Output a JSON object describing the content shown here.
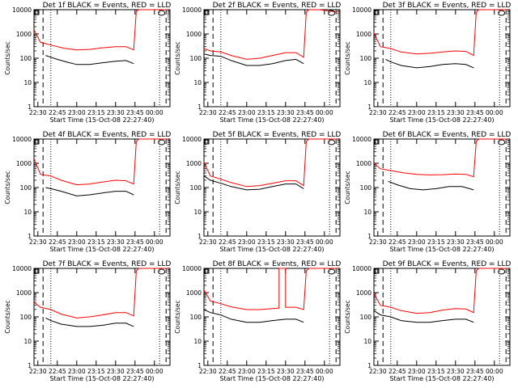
{
  "figure": {
    "type": "multi-panel line chart grid",
    "grid": {
      "rows": 3,
      "cols": 3
    },
    "start_time_label": "Start Time (15-Oct-08 22:27:40)",
    "ylabel": "Counts/sec",
    "colors": {
      "events": "#000000",
      "lld": "#ff0000",
      "axes": "#000000"
    }
  },
  "chart_data": [
    {
      "type": "line",
      "title": "Det 1f BLACK = Events, RED = LLD",
      "xlabel": "Start Time (15-Oct-08 22:27:40)",
      "ylabel": "Counts/sec",
      "xticks": [
        "22:30",
        "22:45",
        "23:00",
        "23:15",
        "23:30",
        "23:45",
        "00:00"
      ],
      "yticks": [
        "1",
        "10",
        "100",
        "1000",
        "10000"
      ],
      "yscale": "log",
      "ylim": [
        1,
        10000
      ],
      "series": [
        {
          "name": "Events",
          "color": "#000000",
          "x": [
            "22:36",
            "22:40",
            "22:45",
            "22:52",
            "23:00",
            "23:10",
            "23:20",
            "23:30",
            "23:38",
            "23:44"
          ],
          "y": [
            130,
            110,
            90,
            70,
            55,
            55,
            65,
            75,
            80,
            60
          ]
        },
        {
          "name": "LLD",
          "color": "#ff0000",
          "x": [
            "22:27",
            "22:32",
            "22:40",
            "22:50",
            "23:00",
            "23:10",
            "23:20",
            "23:30",
            "23:38",
            "23:44",
            "23:46",
            "23:48",
            "23:56",
            "00:10"
          ],
          "y": [
            1500,
            450,
            350,
            260,
            220,
            230,
            270,
            300,
            300,
            220,
            9000,
            10000,
            10000,
            10000
          ]
        }
      ]
    },
    {
      "type": "line",
      "title": "Det 2f BLACK = Events, RED = LLD",
      "xlabel": "Start Time (15-Oct-08 22:27:40)",
      "ylabel": "Counts/sec",
      "xticks": [
        "22:30",
        "22:45",
        "23:00",
        "23:15",
        "23:30",
        "23:45",
        "00:00"
      ],
      "yticks": [
        "1",
        "10",
        "100",
        "1000",
        "10000"
      ],
      "yscale": "log",
      "ylim": [
        1,
        10000
      ],
      "series": [
        {
          "name": "Events",
          "color": "#000000",
          "x": [
            "22:27",
            "22:32",
            "22:40",
            "22:48",
            "23:00",
            "23:10",
            "23:20",
            "23:30",
            "23:38",
            "23:44"
          ],
          "y": [
            150,
            130,
            120,
            80,
            50,
            50,
            60,
            80,
            90,
            60
          ]
        },
        {
          "name": "LLD",
          "color": "#ff0000",
          "x": [
            "22:27",
            "22:32",
            "22:40",
            "22:48",
            "23:00",
            "23:10",
            "23:20",
            "23:30",
            "23:38",
            "23:44",
            "23:46",
            "23:48",
            "23:56",
            "00:10"
          ],
          "y": [
            250,
            200,
            180,
            130,
            90,
            100,
            130,
            170,
            170,
            110,
            8000,
            10000,
            10000,
            8000
          ]
        }
      ]
    },
    {
      "type": "line",
      "title": "Det 3f BLACK = Events, RED = LLD",
      "xlabel": "Start Time (15-Oct-08 22:27:40)",
      "ylabel": "Counts/sec",
      "xticks": [
        "22:30",
        "22:45",
        "23:00",
        "23:15",
        "23:30",
        "23:45",
        "00:00"
      ],
      "yticks": [
        "1",
        "10",
        "100",
        "1000",
        "10000"
      ],
      "yscale": "log",
      "ylim": [
        1,
        10000
      ],
      "series": [
        {
          "name": "Events",
          "color": "#000000",
          "x": [
            "22:36",
            "22:40",
            "22:48",
            "23:00",
            "23:10",
            "23:20",
            "23:30",
            "23:38",
            "23:44"
          ],
          "y": [
            90,
            70,
            50,
            40,
            45,
            55,
            60,
            55,
            40
          ]
        },
        {
          "name": "LLD",
          "color": "#ff0000",
          "x": [
            "22:27",
            "22:32",
            "22:40",
            "22:48",
            "23:00",
            "23:10",
            "23:20",
            "23:30",
            "23:38",
            "23:44",
            "23:46",
            "23:48",
            "00:10"
          ],
          "y": [
            1100,
            300,
            250,
            180,
            150,
            160,
            180,
            200,
            190,
            130,
            8000,
            10000,
            10000
          ]
        }
      ]
    },
    {
      "type": "line",
      "title": "Det 4f BLACK = Events, RED = LLD",
      "xlabel": "Start Time (15-Oct-08 22:27:40)",
      "ylabel": "Counts/sec",
      "xticks": [
        "22:30",
        "22:45",
        "23:00",
        "23:15",
        "23:30",
        "23:45",
        "00:00"
      ],
      "yticks": [
        "1",
        "10",
        "100",
        "1000",
        "10000"
      ],
      "yscale": "log",
      "ylim": [
        1,
        10000
      ],
      "series": [
        {
          "name": "Events",
          "color": "#000000",
          "x": [
            "22:36",
            "22:40",
            "22:48",
            "23:00",
            "23:10",
            "23:20",
            "23:30",
            "23:38",
            "23:44"
          ],
          "y": [
            100,
            90,
            70,
            45,
            50,
            60,
            70,
            70,
            50
          ]
        },
        {
          "name": "LLD",
          "color": "#ff0000",
          "x": [
            "22:27",
            "22:32",
            "22:40",
            "22:48",
            "23:00",
            "23:10",
            "23:20",
            "23:30",
            "23:38",
            "23:44",
            "23:46",
            "23:48",
            "23:56",
            "00:10"
          ],
          "y": [
            1600,
            350,
            300,
            200,
            130,
            140,
            170,
            200,
            190,
            140,
            8000,
            10000,
            10000,
            10000
          ]
        }
      ]
    },
    {
      "type": "line",
      "title": "Det 5f BLACK = Events, RED = LLD",
      "xlabel": "Start Time (15-Oct-08 22:27:40)",
      "ylabel": "Counts/sec",
      "xticks": [
        "22:30",
        "22:45",
        "23:00",
        "23:15",
        "23:30",
        "23:45",
        "00:00"
      ],
      "yticks": [
        "1",
        "10",
        "100",
        "1000",
        "10000"
      ],
      "yscale": "log",
      "ylim": [
        1,
        10000
      ],
      "series": [
        {
          "name": "Events",
          "color": "#000000",
          "x": [
            "22:27",
            "22:32",
            "22:40",
            "22:48",
            "23:00",
            "23:10",
            "23:20",
            "23:30",
            "23:38",
            "23:44"
          ],
          "y": [
            300,
            200,
            150,
            110,
            80,
            85,
            110,
            140,
            140,
            90
          ]
        },
        {
          "name": "LLD",
          "color": "#ff0000",
          "x": [
            "22:27",
            "22:32",
            "22:40",
            "22:48",
            "23:00",
            "23:10",
            "23:20",
            "23:30",
            "23:38",
            "23:44",
            "23:46",
            "23:48",
            "00:10"
          ],
          "y": [
            1100,
            300,
            220,
            160,
            110,
            120,
            150,
            190,
            190,
            120,
            8000,
            10000,
            10000
          ]
        }
      ]
    },
    {
      "type": "line",
      "title": "Det 6f BLACK = Events, RED = LLD",
      "xlabel": "Start Time (15-Oct-08 22:27:40)",
      "ylabel": "Counts/sec",
      "xticks": [
        "22:30",
        "22:45",
        "23:00",
        "23:15",
        "23:30",
        "23:45",
        "00:00"
      ],
      "yticks": [
        "1",
        "10",
        "100",
        "1000",
        "10000"
      ],
      "yscale": "log",
      "ylim": [
        1,
        10000
      ],
      "series": [
        {
          "name": "Events",
          "color": "#000000",
          "x": [
            "22:38",
            "22:45",
            "22:55",
            "23:05",
            "23:15",
            "23:25",
            "23:35",
            "23:44"
          ],
          "y": [
            180,
            130,
            90,
            80,
            90,
            110,
            110,
            80
          ]
        },
        {
          "name": "LLD",
          "color": "#ff0000",
          "x": [
            "22:27",
            "22:32",
            "22:40",
            "22:50",
            "23:00",
            "23:10",
            "23:20",
            "23:30",
            "23:38",
            "23:44",
            "23:46",
            "23:48",
            "00:10"
          ],
          "y": [
            1000,
            600,
            500,
            400,
            350,
            330,
            340,
            360,
            350,
            280,
            8000,
            10000,
            10000
          ]
        }
      ]
    },
    {
      "type": "line",
      "title": "Det 7f BLACK = Events, RED = LLD",
      "xlabel": "Start Time (15-Oct-08 22:27:40)",
      "ylabel": "Counts/sec",
      "xticks": [
        "22:30",
        "22:45",
        "23:00",
        "23:15",
        "23:30",
        "23:45",
        "00:00"
      ],
      "yticks": [
        "1",
        "10",
        "100",
        "1000",
        "10000"
      ],
      "yscale": "log",
      "ylim": [
        1,
        10000
      ],
      "series": [
        {
          "name": "Events",
          "color": "#000000",
          "x": [
            "22:36",
            "22:40",
            "22:48",
            "23:00",
            "23:10",
            "23:20",
            "23:30",
            "23:38",
            "23:44"
          ],
          "y": [
            90,
            70,
            50,
            40,
            40,
            45,
            55,
            55,
            40
          ]
        },
        {
          "name": "LLD",
          "color": "#ff0000",
          "x": [
            "22:27",
            "22:32",
            "22:40",
            "22:48",
            "23:00",
            "23:10",
            "23:20",
            "23:30",
            "23:38",
            "23:44",
            "23:46",
            "23:48",
            "23:56",
            "00:10"
          ],
          "y": [
            400,
            250,
            200,
            130,
            90,
            100,
            120,
            150,
            150,
            110,
            8000,
            10000,
            10000,
            10000
          ]
        }
      ]
    },
    {
      "type": "line",
      "title": "Det 8f BLACK = Events, RED = LLD",
      "xlabel": "Start Time (15-Oct-08 22:27:40)",
      "ylabel": "Counts/sec",
      "xticks": [
        "22:30",
        "22:45",
        "23:00",
        "23:15",
        "23:30",
        "23:45",
        "00:00"
      ],
      "yticks": [
        "1",
        "10",
        "100",
        "1000",
        "10000"
      ],
      "yscale": "log",
      "ylim": [
        1,
        10000
      ],
      "series": [
        {
          "name": "Events",
          "color": "#000000",
          "x": [
            "22:27",
            "22:32",
            "22:40",
            "22:48",
            "23:00",
            "23:10",
            "23:20",
            "23:30",
            "23:38",
            "23:44"
          ],
          "y": [
            200,
            150,
            120,
            80,
            60,
            60,
            70,
            80,
            80,
            60
          ]
        },
        {
          "name": "LLD",
          "color": "#ff0000",
          "x": [
            "22:27",
            "22:32",
            "22:40",
            "22:48",
            "23:00",
            "23:10",
            "23:20",
            "23:25",
            "23:25",
            "23:30",
            "23:30",
            "23:38",
            "23:44",
            "23:46",
            "23:48",
            "00:10"
          ],
          "y": [
            1300,
            450,
            350,
            260,
            200,
            200,
            220,
            230,
            10000,
            10000,
            250,
            250,
            200,
            8000,
            10000,
            10000
          ]
        }
      ]
    },
    {
      "type": "line",
      "title": "Det 9f BLACK = Events, RED = LLD",
      "xlabel": "Start Time (15-Oct-08 22:27:40)",
      "ylabel": "Counts/sec",
      "xticks": [
        "22:30",
        "22:45",
        "23:00",
        "23:15",
        "23:30",
        "23:45",
        "00:00"
      ],
      "yticks": [
        "1",
        "10",
        "100",
        "1000",
        "10000"
      ],
      "yscale": "log",
      "ylim": [
        1,
        10000
      ],
      "series": [
        {
          "name": "Events",
          "color": "#000000",
          "x": [
            "22:27",
            "22:32",
            "22:40",
            "22:48",
            "23:00",
            "23:10",
            "23:20",
            "23:30",
            "23:38",
            "23:44"
          ],
          "y": [
            180,
            120,
            100,
            70,
            60,
            60,
            70,
            80,
            80,
            60
          ]
        },
        {
          "name": "LLD",
          "color": "#ff0000",
          "x": [
            "22:27",
            "22:32",
            "22:40",
            "22:48",
            "23:00",
            "23:10",
            "23:20",
            "23:30",
            "23:38",
            "23:44",
            "23:46",
            "23:48",
            "00:10"
          ],
          "y": [
            900,
            300,
            250,
            180,
            140,
            150,
            190,
            220,
            210,
            150,
            8000,
            10000,
            10000
          ]
        }
      ]
    }
  ]
}
